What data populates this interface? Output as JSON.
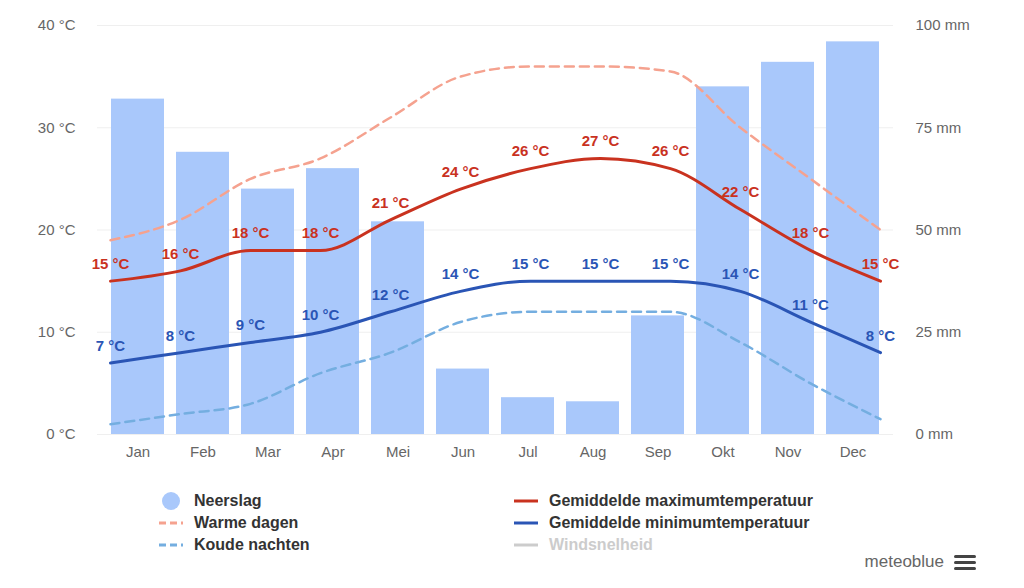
{
  "chart_data": {
    "type": "combo",
    "caption": "meteoblue",
    "categories": [
      "Jan",
      "Feb",
      "Mar",
      "Apr",
      "Mei",
      "Jun",
      "Jul",
      "Aug",
      "Sep",
      "Okt",
      "Nov",
      "Dec"
    ],
    "series": [
      {
        "name": "Neerslag",
        "type": "bar",
        "axis": "y2",
        "color": "#a9c8fb",
        "marker": "circle",
        "values": [
          82,
          69,
          60,
          65,
          52,
          16,
          9,
          8,
          29,
          85,
          91,
          96
        ]
      },
      {
        "name": "Warme dagen",
        "type": "line",
        "line_style": "dashed",
        "color": "#f5a28f",
        "values": [
          19,
          21,
          25,
          27,
          31,
          35,
          36,
          36,
          35.5,
          30,
          25,
          20
        ]
      },
      {
        "name": "Koude nachten",
        "type": "line",
        "line_style": "dashed",
        "color": "#74aee0",
        "values": [
          1,
          2,
          3,
          6,
          8,
          11,
          12,
          12,
          12,
          9,
          5,
          1.5
        ]
      },
      {
        "name": "Gemiddelde maximumtemperatuur",
        "type": "line",
        "line_style": "solid",
        "color": "#c9321f",
        "data_labels": true,
        "values": [
          15,
          16,
          18,
          18,
          21,
          24,
          26,
          27,
          26,
          22,
          18,
          15
        ],
        "value_labels": [
          "15 °C",
          "16 °C",
          "18 °C",
          "18 °C",
          "21 °C",
          "24 °C",
          "26 °C",
          "27 °C",
          "26 °C",
          "22 °C",
          "18 °C",
          "15 °C"
        ]
      },
      {
        "name": "Gemiddelde minimumtemperatuur",
        "type": "line",
        "line_style": "solid",
        "color": "#2a55b5",
        "data_labels": true,
        "values": [
          7,
          8,
          9,
          10,
          12,
          14,
          15,
          15,
          15,
          14,
          11,
          8
        ],
        "value_labels": [
          "7 °C",
          "8 °C",
          "9 °C",
          "10 °C",
          "12 °C",
          "14 °C",
          "15 °C",
          "15 °C",
          "15 °C",
          "14 °C",
          "11 °C",
          "8 °C"
        ]
      },
      {
        "name": "Windsnelheid",
        "type": "line",
        "line_style": "solid",
        "color": "#cccccc",
        "values": [
          null,
          null,
          null,
          null,
          null,
          null,
          null,
          null,
          null,
          null,
          null,
          null
        ]
      }
    ],
    "ylim": [
      0,
      40
    ],
    "yticks": [
      {
        "value": 0,
        "label": "0 °C"
      },
      {
        "value": 10,
        "label": "10 °C"
      },
      {
        "value": 20,
        "label": "20 °C"
      },
      {
        "value": 30,
        "label": "30 °C"
      },
      {
        "value": 40,
        "label": "40 °C"
      }
    ],
    "y2lim": [
      0,
      100
    ],
    "y2ticks": [
      {
        "value": 0,
        "label": "0 mm"
      },
      {
        "value": 25,
        "label": "25 mm"
      },
      {
        "value": 50,
        "label": "50 mm"
      },
      {
        "value": 75,
        "label": "75 mm"
      },
      {
        "value": 100,
        "label": "100 mm"
      }
    ],
    "grid": true,
    "legend": "bottom"
  }
}
